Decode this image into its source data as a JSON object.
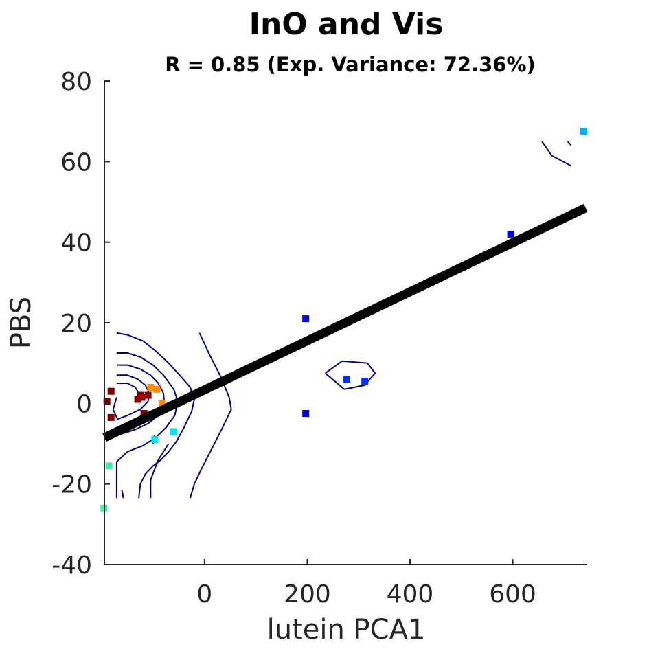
{
  "chart_data": {
    "type": "scatter",
    "title": "InO and Vis",
    "subtitle": "R = 0.85 (Exp. Variance: 72.36%)",
    "xlabel": "lutein PCA1",
    "ylabel": "PBS",
    "xlim": [
      -195,
      745
    ],
    "ylim": [
      -40,
      80
    ],
    "xticks": [
      0,
      200,
      400,
      600
    ],
    "yticks": [
      -40,
      -20,
      0,
      20,
      40,
      60,
      80
    ],
    "grid": false,
    "points": [
      {
        "x": -190,
        "y": 0.5,
        "color": "#800000"
      },
      {
        "x": -182,
        "y": 3,
        "color": "#800000"
      },
      {
        "x": -182,
        "y": -3.5,
        "color": "#800000"
      },
      {
        "x": -130,
        "y": 1,
        "color": "#800000"
      },
      {
        "x": -125,
        "y": 2,
        "color": "#800000"
      },
      {
        "x": -122,
        "y": 1.5,
        "color": "#a00000"
      },
      {
        "x": -110,
        "y": 2,
        "color": "#800000"
      },
      {
        "x": -118,
        "y": -2.5,
        "color": "#800000"
      },
      {
        "x": -105,
        "y": 4,
        "color": "#ff8c00"
      },
      {
        "x": -93,
        "y": 3.5,
        "color": "#ff8c00"
      },
      {
        "x": -83,
        "y": 0,
        "color": "#ff8c00"
      },
      {
        "x": -97,
        "y": -9,
        "color": "#00e6f0"
      },
      {
        "x": -60,
        "y": -7,
        "color": "#00e6f0"
      },
      {
        "x": -186,
        "y": -15.5,
        "color": "#40f0a0"
      },
      {
        "x": -196,
        "y": -26,
        "color": "#40f0a0"
      },
      {
        "x": 197,
        "y": 21,
        "color": "#0000e0"
      },
      {
        "x": 197,
        "y": -2.5,
        "color": "#0000e0"
      },
      {
        "x": 277,
        "y": 6,
        "color": "#0030ff"
      },
      {
        "x": 312,
        "y": 5.5,
        "color": "#0030ff"
      },
      {
        "x": 596,
        "y": 42,
        "color": "#0000e0"
      },
      {
        "x": 738,
        "y": 67.5,
        "color": "#00b0ff"
      }
    ],
    "regression_line": {
      "x": [
        -195,
        742
      ],
      "y": [
        -8.5,
        48.5
      ],
      "color": "#000000"
    },
    "contours": [
      {
        "color": "#00007a",
        "points": [
          [
            -171,
            17.5
          ],
          [
            -150,
            17
          ],
          [
            -120,
            15.5
          ],
          [
            -95,
            13
          ],
          [
            -70,
            10
          ],
          [
            -45,
            6.5
          ],
          [
            -28,
            4
          ],
          [
            -20,
            1
          ],
          [
            -25,
            -2
          ],
          [
            -40,
            -6
          ],
          [
            -55,
            -9.5
          ],
          [
            -70,
            -12
          ],
          [
            -85,
            -14
          ],
          [
            -100,
            -15.5
          ],
          [
            -115,
            -17.5
          ],
          [
            -125,
            -20
          ],
          [
            -128,
            -23.5
          ]
        ]
      },
      {
        "color": "#00007a",
        "points": [
          [
            -171,
            12.5
          ],
          [
            -150,
            12.5
          ],
          [
            -125,
            11.5
          ],
          [
            -100,
            9.5
          ],
          [
            -80,
            7
          ],
          [
            -60,
            3.5
          ],
          [
            -52,
            0.5
          ],
          [
            -58,
            -3
          ],
          [
            -75,
            -6
          ],
          [
            -95,
            -8.5
          ],
          [
            -120,
            -10.5
          ],
          [
            -150,
            -12
          ],
          [
            -171,
            -14.5
          ],
          [
            -171,
            -23.5
          ]
        ]
      },
      {
        "color": "#00007a",
        "points": [
          [
            -171,
            9.5
          ],
          [
            -150,
            9.5
          ],
          [
            -125,
            8.5
          ],
          [
            -105,
            7
          ],
          [
            -90,
            5
          ],
          [
            -80,
            2.5
          ],
          [
            -78,
            -0.5
          ],
          [
            -90,
            -3
          ],
          [
            -110,
            -5
          ],
          [
            -135,
            -6.5
          ],
          [
            -160,
            -7.5
          ],
          [
            -171,
            -8
          ]
        ]
      },
      {
        "color": "#00007a",
        "points": [
          [
            -171,
            7
          ],
          [
            -150,
            7
          ],
          [
            -130,
            6
          ],
          [
            -115,
            4.5
          ],
          [
            -108,
            2.5
          ],
          [
            -110,
            0.5
          ],
          [
            -125,
            -1.5
          ],
          [
            -150,
            -3
          ],
          [
            -171,
            -4
          ]
        ]
      },
      {
        "color": "#00007a",
        "points": [
          [
            -171,
            5
          ],
          [
            -150,
            5
          ],
          [
            -135,
            4
          ],
          [
            -128,
            2.5
          ]
        ]
      },
      {
        "color": "#00007a",
        "points": [
          [
            -161,
            -21.5
          ],
          [
            -158,
            -23.5
          ]
        ]
      },
      {
        "color": "#00007a",
        "points": [
          [
            -10,
            17.5
          ],
          [
            10,
            12
          ],
          [
            30,
            7
          ],
          [
            48,
            1.5
          ],
          [
            52,
            -1.5
          ],
          [
            35,
            -6
          ],
          [
            15,
            -11
          ],
          [
            -5,
            -16
          ],
          [
            -20,
            -20
          ],
          [
            -28,
            -23.5
          ]
        ]
      },
      {
        "color": "#00007a",
        "points": [
          [
            -105,
            -23.5
          ],
          [
            -105,
            -19
          ],
          [
            -90,
            -14
          ],
          [
            -70,
            -10
          ]
        ]
      },
      {
        "color": "#00007a",
        "points": [
          [
            -100,
            -10
          ],
          [
            -98,
            -8
          ]
        ]
      },
      {
        "color": "#00007a",
        "points": [
          [
            -171,
            1.5
          ],
          [
            -178,
            -1.5
          ],
          [
            -171,
            -3.5
          ]
        ]
      },
      {
        "color": "#00007a",
        "points": [
          [
            235,
            7.5
          ],
          [
            268,
            10.5
          ],
          [
            317,
            10
          ],
          [
            332,
            7.5
          ],
          [
            312,
            4.5
          ],
          [
            272,
            3.5
          ],
          [
            235,
            7.5
          ]
        ]
      },
      {
        "color": "#00007a",
        "points": [
          [
            657,
            65
          ],
          [
            676,
            61.5
          ],
          [
            713,
            59
          ]
        ]
      },
      {
        "color": "#00007a",
        "points": [
          [
            707,
            65
          ],
          [
            714,
            64
          ]
        ]
      }
    ]
  }
}
